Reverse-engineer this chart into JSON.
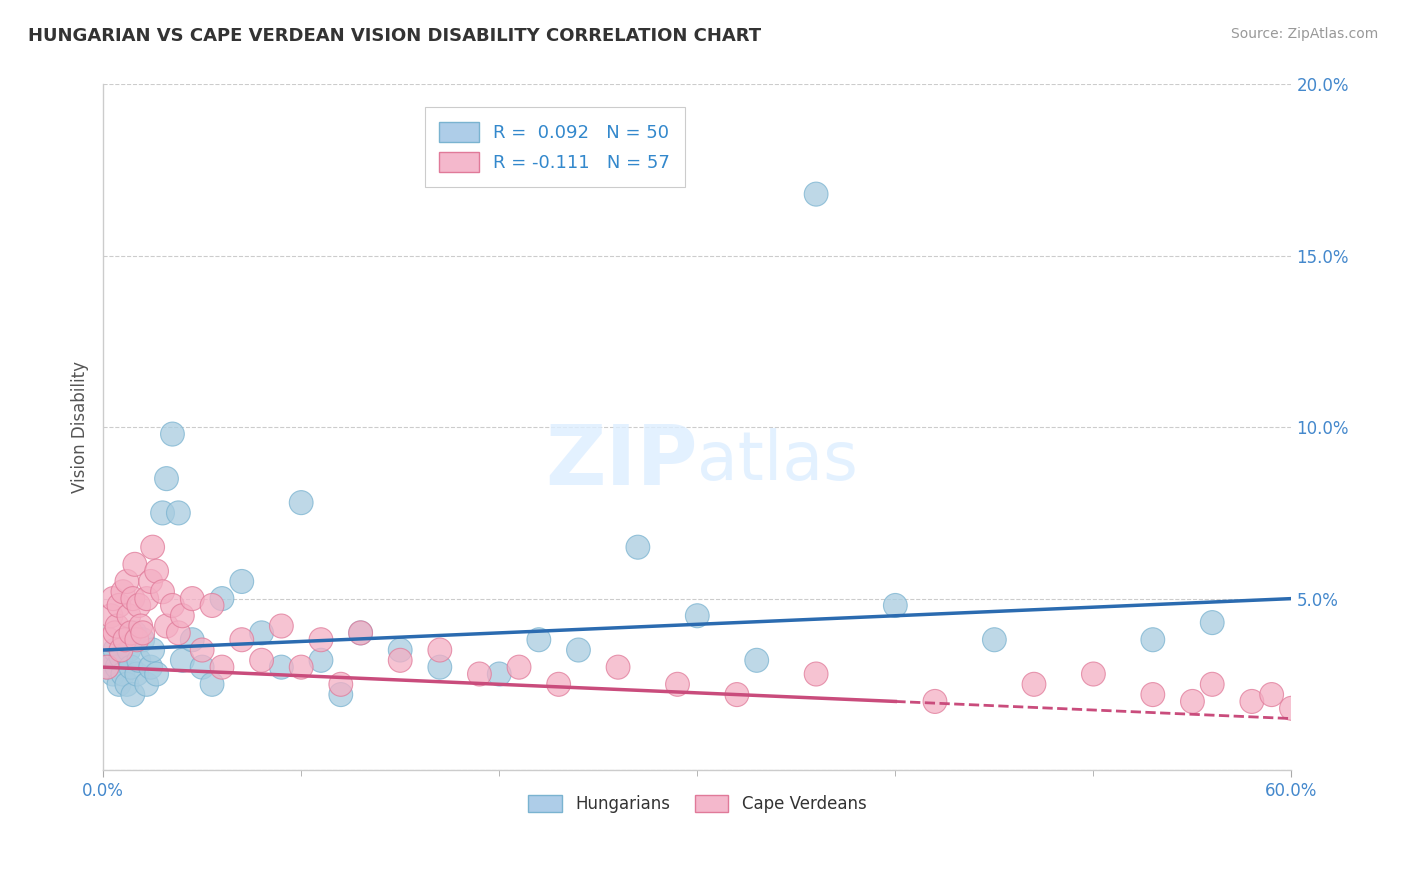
{
  "title": "HUNGARIAN VS CAPE VERDEAN VISION DISABILITY CORRELATION CHART",
  "source": "Source: ZipAtlas.com",
  "ylabel": "Vision Disability",
  "xlim": [
    0.0,
    0.6
  ],
  "ylim": [
    0.0,
    0.2
  ],
  "yticks": [
    0.0,
    0.05,
    0.1,
    0.15,
    0.2
  ],
  "xtick_positions": [
    0.0,
    0.6
  ],
  "xtick_labels_shown": [
    "0.0%",
    "60.0%"
  ],
  "blue_scatter_color": "#a8cce0",
  "blue_scatter_edge": "#7ab3d0",
  "pink_scatter_color": "#f4afc4",
  "pink_scatter_edge": "#e07a99",
  "blue_line_color": "#2b6bb0",
  "pink_line_color": "#c94c7c",
  "legend_label_blue": "Hungarians",
  "legend_label_pink": "Cape Verdeans",
  "watermark_text": "ZIPatlas",
  "hun_x": [
    0.002,
    0.004,
    0.005,
    0.006,
    0.007,
    0.008,
    0.009,
    0.01,
    0.011,
    0.012,
    0.013,
    0.014,
    0.015,
    0.016,
    0.017,
    0.018,
    0.02,
    0.022,
    0.024,
    0.025,
    0.027,
    0.03,
    0.032,
    0.035,
    0.038,
    0.04,
    0.045,
    0.05,
    0.055,
    0.06,
    0.07,
    0.08,
    0.09,
    0.1,
    0.11,
    0.12,
    0.13,
    0.15,
    0.17,
    0.2,
    0.22,
    0.24,
    0.27,
    0.3,
    0.33,
    0.36,
    0.4,
    0.45,
    0.53,
    0.56
  ],
  "hun_y": [
    0.03,
    0.032,
    0.028,
    0.035,
    0.03,
    0.025,
    0.033,
    0.028,
    0.038,
    0.025,
    0.035,
    0.03,
    0.022,
    0.04,
    0.028,
    0.032,
    0.038,
    0.025,
    0.03,
    0.035,
    0.028,
    0.075,
    0.085,
    0.098,
    0.075,
    0.032,
    0.038,
    0.03,
    0.025,
    0.05,
    0.055,
    0.04,
    0.03,
    0.078,
    0.032,
    0.022,
    0.04,
    0.035,
    0.03,
    0.028,
    0.038,
    0.035,
    0.065,
    0.045,
    0.032,
    0.168,
    0.048,
    0.038,
    0.038,
    0.043
  ],
  "cap_x": [
    0.002,
    0.003,
    0.004,
    0.005,
    0.006,
    0.007,
    0.008,
    0.009,
    0.01,
    0.011,
    0.012,
    0.013,
    0.014,
    0.015,
    0.016,
    0.017,
    0.018,
    0.019,
    0.02,
    0.022,
    0.024,
    0.025,
    0.027,
    0.03,
    0.032,
    0.035,
    0.038,
    0.04,
    0.045,
    0.05,
    0.055,
    0.06,
    0.07,
    0.08,
    0.09,
    0.1,
    0.11,
    0.12,
    0.13,
    0.15,
    0.17,
    0.19,
    0.21,
    0.23,
    0.26,
    0.29,
    0.32,
    0.36,
    0.42,
    0.47,
    0.5,
    0.53,
    0.56,
    0.58,
    0.6,
    0.59,
    0.55
  ],
  "cap_y": [
    0.03,
    0.038,
    0.045,
    0.05,
    0.04,
    0.042,
    0.048,
    0.035,
    0.052,
    0.038,
    0.055,
    0.045,
    0.04,
    0.05,
    0.06,
    0.038,
    0.048,
    0.042,
    0.04,
    0.05,
    0.055,
    0.065,
    0.058,
    0.052,
    0.042,
    0.048,
    0.04,
    0.045,
    0.05,
    0.035,
    0.048,
    0.03,
    0.038,
    0.032,
    0.042,
    0.03,
    0.038,
    0.025,
    0.04,
    0.032,
    0.035,
    0.028,
    0.03,
    0.025,
    0.03,
    0.025,
    0.022,
    0.028,
    0.02,
    0.025,
    0.028,
    0.022,
    0.025,
    0.02,
    0.018,
    0.022,
    0.02
  ]
}
